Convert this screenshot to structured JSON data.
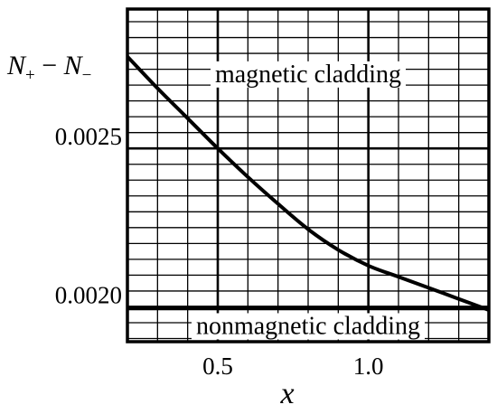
{
  "chart_data": {
    "type": "line",
    "title": "",
    "xlabel": "x",
    "ylabel": {
      "base": "N",
      "sub1": "+",
      "mid": " − ",
      "sub2": "−"
    },
    "xlim": [
      0.2,
      1.4
    ],
    "ylim": [
      0.00189,
      0.00294
    ],
    "x_ticks": [
      {
        "value": 0.5,
        "label": "0.5"
      },
      {
        "value": 1.0,
        "label": "1.0"
      }
    ],
    "y_ticks": [
      {
        "value": 0.0025,
        "label": "0.0025"
      },
      {
        "value": 0.002,
        "label": "0.0020"
      }
    ],
    "grid": true,
    "series": [
      {
        "id": "magnetic",
        "x": [
          0.2,
          0.3,
          0.4,
          0.5,
          0.6,
          0.7,
          0.8,
          0.9,
          1.0,
          1.1,
          1.2,
          1.3,
          1.4
        ],
        "y": [
          0.00279,
          0.00269,
          0.002595,
          0.0025,
          0.00241,
          0.002325,
          0.002245,
          0.00218,
          0.00213,
          0.002095,
          0.00206,
          0.002025,
          0.00199
        ]
      },
      {
        "id": "nonmagnetic",
        "x": [
          0.2,
          1.4
        ],
        "y": [
          0.001995,
          0.001995
        ]
      }
    ],
    "annotations": [
      {
        "text": "magnetic cladding",
        "x": 0.8,
        "y": 0.002735
      },
      {
        "text": "nonmagnetic cladding",
        "x": 0.8,
        "y": 0.00194
      }
    ]
  }
}
